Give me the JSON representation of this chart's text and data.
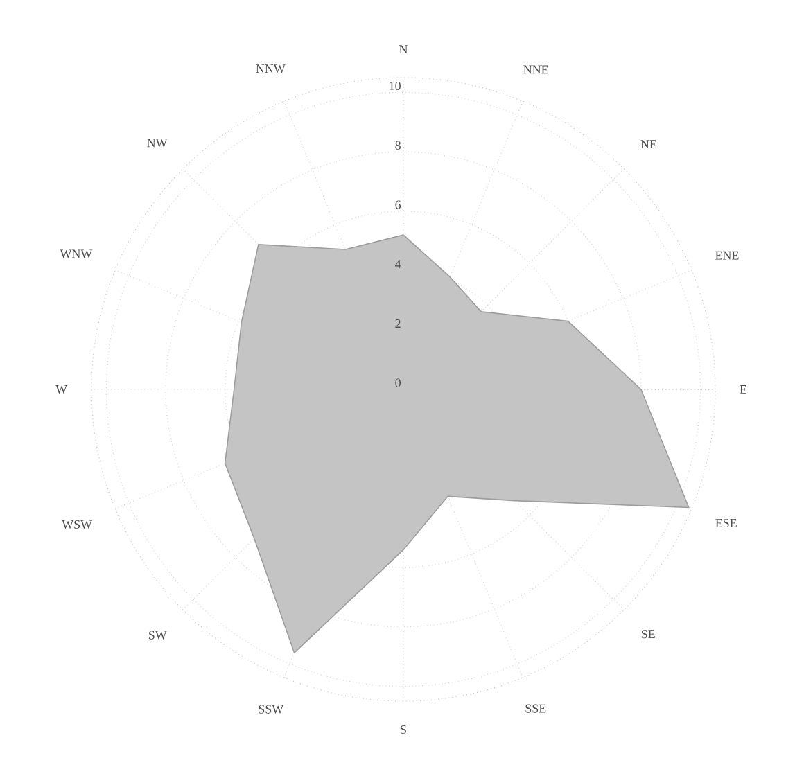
{
  "chart_data": {
    "type": "radar",
    "categories": [
      "N",
      "NNE",
      "NE",
      "ENE",
      "E",
      "ESE",
      "SE",
      "SSE",
      "S",
      "SSW",
      "SW",
      "WSW",
      "W",
      "WNW",
      "NW",
      "NNW"
    ],
    "series": [
      {
        "color": "#c4c4c4",
        "values": [
          5.2,
          4.1,
          3.7,
          6.0,
          8.0,
          10.4,
          5.3,
          3.9,
          5.4,
          9.6,
          7.1,
          6.5,
          5.7,
          5.9,
          6.9,
          5.1
        ]
      }
    ],
    "ylim": [
      0,
      10.5
    ],
    "yticks": [
      0,
      2,
      4,
      6,
      8,
      10
    ],
    "grid": true,
    "marker": "none"
  }
}
